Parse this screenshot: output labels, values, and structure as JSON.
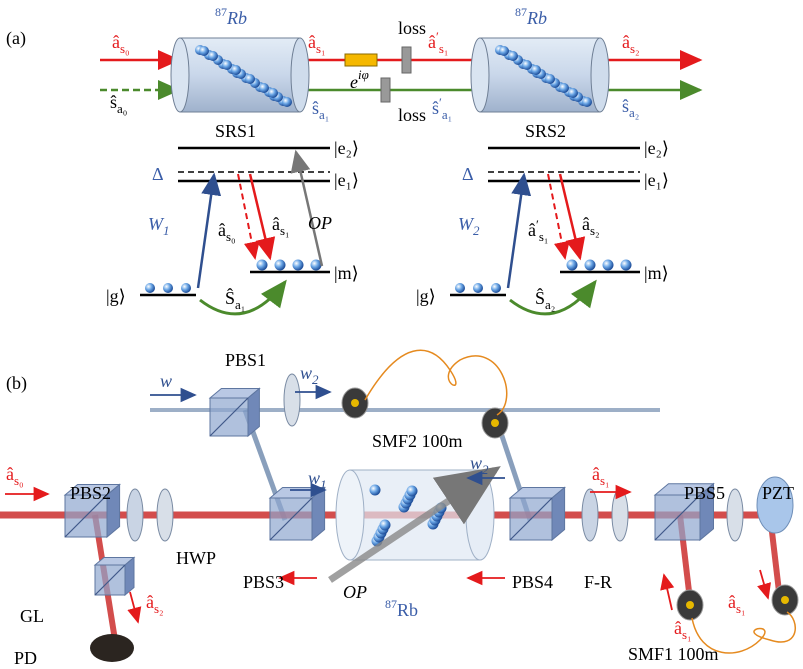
{
  "panel_a": {
    "label": "(a)",
    "cells": [
      {
        "iso": "87",
        "el": "Rb"
      },
      {
        "iso": "87",
        "el": "Rb"
      }
    ],
    "beams": [
      {
        "b": "â",
        "s": "s₀"
      },
      {
        "b": "ŝ",
        "s": "a₀"
      },
      {
        "b": "â",
        "s": "s₁"
      },
      {
        "b": "â",
        "p": "′",
        "s": "s₁"
      },
      {
        "b": "ŝ",
        "s": "a₁"
      },
      {
        "b": "ŝ",
        "p": "′",
        "s": "a₁"
      },
      {
        "b": "â",
        "s": "s₂"
      },
      {
        "b": "ŝ",
        "s": "a₂"
      }
    ],
    "loss": [
      "loss",
      "loss"
    ],
    "phase": {
      "b": "e",
      "sup": "iφ"
    },
    "srs": [
      {
        "title": "SRS1",
        "e2": "|e₂⟩",
        "e1": "|e₁⟩",
        "delta": "Δ",
        "pump": {
          "b": "W",
          "s": "1"
        },
        "in": {
          "b": "â",
          "s": "s₀"
        },
        "out": {
          "b": "â",
          "s": "s₁"
        },
        "op": "OP",
        "spin": {
          "b": "Ŝ",
          "s": "a₁"
        },
        "g": "|g⟩",
        "m": "|m⟩"
      },
      {
        "title": "SRS2",
        "e2": "|e₂⟩",
        "e1": "|e₁⟩",
        "delta": "Δ",
        "pump": {
          "b": "W",
          "s": "2"
        },
        "in": {
          "b": "â",
          "p": "′",
          "s": "s₁"
        },
        "out": {
          "b": "â",
          "s": "s₂"
        },
        "spin": {
          "b": "Ŝ",
          "s": "a₂"
        },
        "g": "|g⟩",
        "m": "|m⟩"
      }
    ]
  },
  "panel_b": {
    "label": "(b)",
    "items": [
      {
        "t": "PBS1"
      },
      {
        "b": "w"
      },
      {
        "b": "w",
        "s": "2"
      },
      {
        "t": "SMF2 100m"
      },
      {
        "b": "w",
        "s": "1"
      },
      {
        "b": "w",
        "s": "2"
      },
      {
        "b": "â",
        "s": "s₀"
      },
      {
        "t": "PBS2"
      },
      {
        "t": "HWP"
      },
      {
        "t": "PBS3"
      },
      {
        "b": "OP"
      },
      {
        "iso": "87",
        "el": "Rb"
      },
      {
        "t": "PBS4"
      },
      {
        "t": "F-R"
      },
      {
        "b": "â",
        "s": "s₁"
      },
      {
        "t": "PBS5"
      },
      {
        "t": "PZT"
      },
      {
        "t": "GL"
      },
      {
        "b": "â",
        "s": "s₂"
      },
      {
        "t": "PD"
      },
      {
        "b": "â",
        "s": "s₁"
      },
      {
        "b": "â",
        "s": "s₁"
      },
      {
        "t": "SMF1 100m"
      }
    ]
  }
}
